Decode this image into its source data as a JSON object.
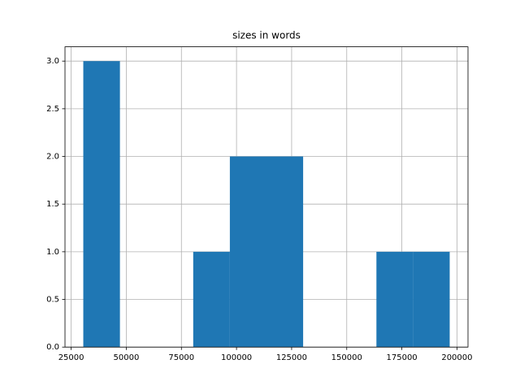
{
  "chart_data": {
    "type": "histogram",
    "title": "sizes in words",
    "bins": [
      30500,
      47120,
      63740,
      80360,
      96980,
      113600,
      130220,
      146840,
      163460,
      180080,
      196700
    ],
    "values": [
      3,
      0,
      0,
      1,
      2,
      2,
      0,
      0,
      1,
      1
    ],
    "color": "#1f77b4",
    "xlim": [
      22200,
      205000
    ],
    "xticks": [
      25000,
      50000,
      75000,
      100000,
      125000,
      150000,
      175000,
      200000
    ],
    "ylim": [
      0,
      3.15
    ],
    "yticks": [
      {
        "value": 0,
        "label": "0.0"
      },
      {
        "value": 0.5,
        "label": "0.5"
      },
      {
        "value": 1,
        "label": "1.0"
      },
      {
        "value": 1.5,
        "label": "1.5"
      },
      {
        "value": 2,
        "label": "2.0"
      },
      {
        "value": 2.5,
        "label": "2.5"
      },
      {
        "value": 3,
        "label": "3.0"
      }
    ],
    "grid": true
  }
}
